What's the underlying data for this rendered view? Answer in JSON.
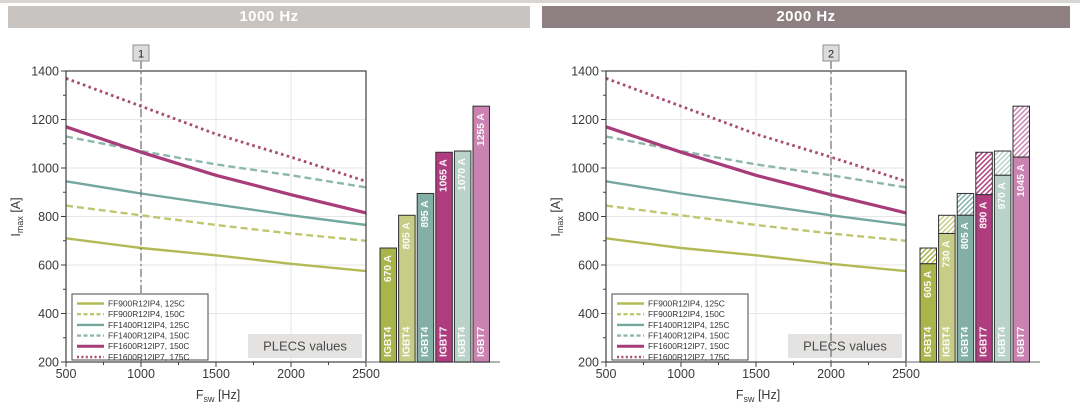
{
  "chart_data": [
    {
      "type": "line+bar",
      "title": "1000 Hz",
      "title_bg": "#c7c4c1",
      "xlabel": "Fsw [Hz]",
      "xlabel_parts": {
        "base": "F",
        "sub": "sw",
        "rest": " [Hz]"
      },
      "ylabel": "Imax [A]",
      "ylabel_parts": {
        "base": "I",
        "sub": "max",
        "rest": " [A]"
      },
      "xlim": [
        500,
        2500
      ],
      "ylim": [
        200,
        1400
      ],
      "x_ticks": [
        500,
        1000,
        1500,
        2000,
        2500
      ],
      "x_minor_ticks": [
        750,
        1250,
        1750,
        2250
      ],
      "y_ticks": [
        200,
        400,
        600,
        800,
        1000,
        1200,
        1400
      ],
      "y_minor_ticks": [
        300,
        500,
        700,
        900,
        1100,
        1300
      ],
      "grid": true,
      "legend_position": "bottom-left",
      "annotation": "PLECS values",
      "marker": {
        "label": "1",
        "x": 1000
      },
      "x": [
        500,
        1000,
        1500,
        2000,
        2500
      ],
      "series": [
        {
          "name": "FF900R12IP4, 125C",
          "style": "solid",
          "color": "#b2ba55",
          "width": 2.4,
          "values": [
            710,
            670,
            640,
            605,
            575
          ]
        },
        {
          "name": "FF900R12IP4, 150C",
          "style": "dashed",
          "color": "#c0c66f",
          "width": 2.4,
          "values": [
            845,
            805,
            765,
            730,
            700
          ]
        },
        {
          "name": "FF1400R12IP4, 125C",
          "style": "solid",
          "color": "#74a79e",
          "width": 2.4,
          "values": [
            945,
            895,
            850,
            805,
            765
          ]
        },
        {
          "name": "FF1400R12IP4, 150C",
          "style": "dashed",
          "color": "#8db7ae",
          "width": 2.4,
          "values": [
            1130,
            1070,
            1015,
            970,
            920
          ]
        },
        {
          "name": "FF1600R12IP7, 150C",
          "style": "solid",
          "color": "#a83b79",
          "width": 3.2,
          "values": [
            1170,
            1065,
            970,
            890,
            815
          ]
        },
        {
          "name": "FF1600R12IP7, 175C",
          "style": "dotted",
          "color": "#a84b74",
          "width": 2.8,
          "values": [
            1370,
            1255,
            1140,
            1045,
            945
          ]
        }
      ],
      "bars": [
        {
          "label": "IGBT4",
          "value": 670,
          "value_label": "670 A",
          "color": "#a9b44a"
        },
        {
          "label": "IGBT4",
          "value": 805,
          "value_label": "805 A",
          "color": "#c7cd86"
        },
        {
          "label": "IGBT4",
          "value": 895,
          "value_label": "895 A",
          "color": "#83afa6"
        },
        {
          "label": "IGBT7",
          "value": 1065,
          "value_label": "1065 A",
          "color": "#ae3c7e"
        },
        {
          "label": "IGBT4",
          "value": 1070,
          "value_label": "1070 A",
          "color": "#b9d2ca"
        },
        {
          "label": "IGBT7",
          "value": 1255,
          "value_label": "1255 A",
          "color": "#ca82b0"
        }
      ]
    },
    {
      "type": "line+bar",
      "title": "2000 Hz",
      "title_bg": "#8e8082",
      "xlabel": "Fsw [Hz]",
      "xlabel_parts": {
        "base": "F",
        "sub": "sw",
        "rest": " [Hz]"
      },
      "ylabel": "Imax [A]",
      "ylabel_parts": {
        "base": "I",
        "sub": "max",
        "rest": " [A]"
      },
      "xlim": [
        500,
        2500
      ],
      "ylim": [
        200,
        1400
      ],
      "x_ticks": [
        500,
        1000,
        1500,
        2000,
        2500
      ],
      "x_minor_ticks": [
        750,
        1250,
        1750,
        2250
      ],
      "y_ticks": [
        200,
        400,
        600,
        800,
        1000,
        1200,
        1400
      ],
      "y_minor_ticks": [
        300,
        500,
        700,
        900,
        1100,
        1300
      ],
      "grid": true,
      "legend_position": "bottom-left",
      "annotation": "PLECS values",
      "marker": {
        "label": "2",
        "x": 2000
      },
      "x": [
        500,
        1000,
        1500,
        2000,
        2500
      ],
      "series": [
        {
          "name": "FF900R12IP4, 125C",
          "style": "solid",
          "color": "#b2ba55",
          "width": 2.4,
          "values": [
            710,
            670,
            640,
            605,
            575
          ]
        },
        {
          "name": "FF900R12IP4, 150C",
          "style": "dashed",
          "color": "#c0c66f",
          "width": 2.4,
          "values": [
            845,
            805,
            765,
            730,
            700
          ]
        },
        {
          "name": "FF1400R12IP4, 125C",
          "style": "solid",
          "color": "#74a79e",
          "width": 2.4,
          "values": [
            945,
            895,
            850,
            805,
            765
          ]
        },
        {
          "name": "FF1400R12IP4, 150C",
          "style": "dashed",
          "color": "#8db7ae",
          "width": 2.4,
          "values": [
            1130,
            1070,
            1015,
            970,
            920
          ]
        },
        {
          "name": "FF1600R12IP7, 150C",
          "style": "solid",
          "color": "#a83b79",
          "width": 3.2,
          "values": [
            1170,
            1065,
            970,
            890,
            815
          ]
        },
        {
          "name": "FF1600R12IP7, 175C",
          "style": "dotted",
          "color": "#a84b74",
          "width": 2.8,
          "values": [
            1370,
            1255,
            1140,
            1045,
            945
          ]
        }
      ],
      "bars": [
        {
          "label": "IGBT4",
          "value": 605,
          "value_label": "605 A",
          "hatch_to": 670,
          "color": "#a9b44a"
        },
        {
          "label": "IGBT4",
          "value": 730,
          "value_label": "730 A",
          "hatch_to": 805,
          "color": "#c7cd86"
        },
        {
          "label": "IGBT4",
          "value": 805,
          "value_label": "805 A",
          "hatch_to": 895,
          "color": "#83afa6"
        },
        {
          "label": "IGBT7",
          "value": 890,
          "value_label": "890 A",
          "hatch_to": 1065,
          "color": "#ae3c7e"
        },
        {
          "label": "IGBT4",
          "value": 970,
          "value_label": "970 A",
          "hatch_to": 1070,
          "color": "#b9d2ca"
        },
        {
          "label": "IGBT7",
          "value": 1045,
          "value_label": "1045 A",
          "hatch_to": 1255,
          "color": "#ca82b0"
        }
      ]
    }
  ]
}
